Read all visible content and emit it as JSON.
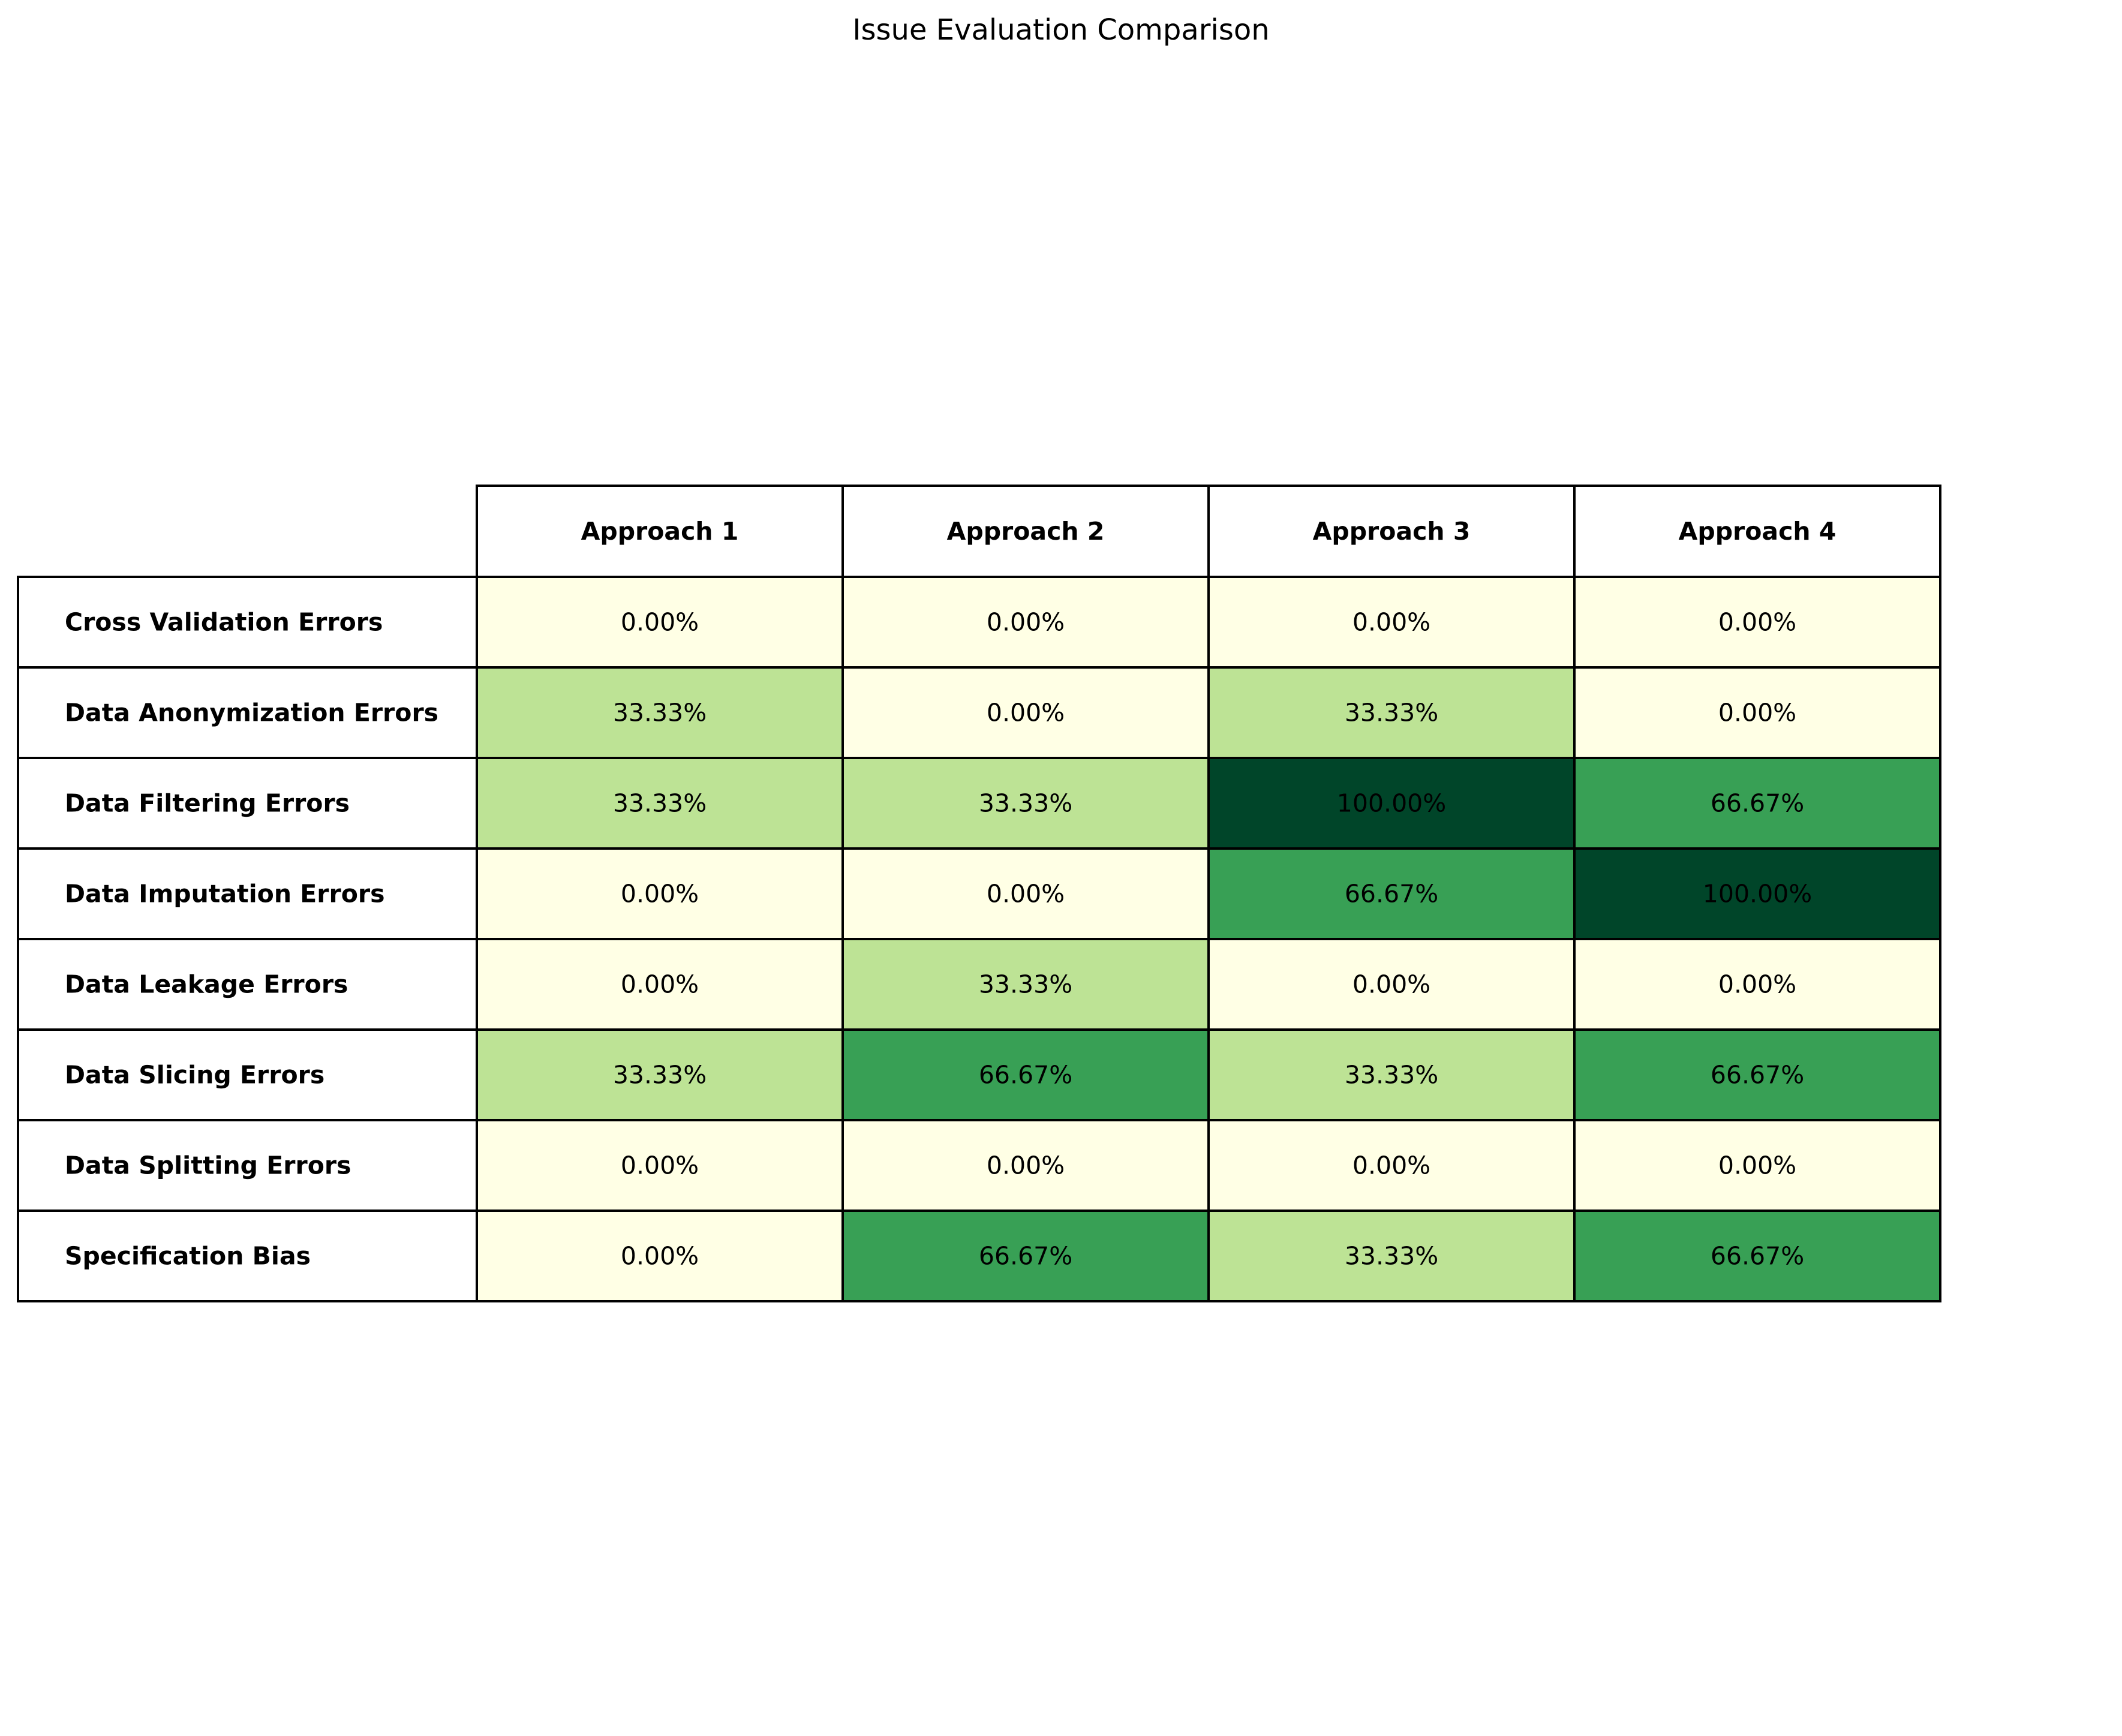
{
  "chart_data": {
    "type": "table",
    "title": "Issue Evaluation Comparison",
    "columns": [
      "Approach 1",
      "Approach 2",
      "Approach 3",
      "Approach 4"
    ],
    "rows": [
      "Cross Validation Errors",
      "Data Anonymization Errors",
      "Data Filtering Errors",
      "Data Imputation Errors",
      "Data Leakage Errors",
      "Data Slicing Errors",
      "Data Splitting Errors",
      "Specification Bias"
    ],
    "values": [
      [
        0.0,
        0.0,
        0.0,
        0.0
      ],
      [
        33.33,
        0.0,
        33.33,
        0.0
      ],
      [
        33.33,
        33.33,
        100.0,
        66.67
      ],
      [
        0.0,
        0.0,
        66.67,
        100.0
      ],
      [
        0.0,
        33.33,
        0.0,
        0.0
      ],
      [
        33.33,
        66.67,
        33.33,
        66.67
      ],
      [
        0.0,
        0.0,
        0.0,
        0.0
      ],
      [
        0.0,
        66.67,
        33.33,
        66.67
      ]
    ],
    "value_labels": [
      [
        "0.00%",
        "0.00%",
        "0.00%",
        "0.00%"
      ],
      [
        "33.33%",
        "0.00%",
        "33.33%",
        "0.00%"
      ],
      [
        "33.33%",
        "33.33%",
        "100.00%",
        "66.67%"
      ],
      [
        "0.00%",
        "0.00%",
        "66.67%",
        "100.00%"
      ],
      [
        "0.00%",
        "33.33%",
        "0.00%",
        "0.00%"
      ],
      [
        "33.33%",
        "66.67%",
        "33.33%",
        "66.67%"
      ],
      [
        "0.00%",
        "0.00%",
        "0.00%",
        "0.00%"
      ],
      [
        "0.00%",
        "66.67%",
        "33.33%",
        "66.67%"
      ]
    ],
    "color_scale": {
      "0.00": "#ffffe5",
      "33.33": "#bde395",
      "66.67": "#38a055",
      "100.00": "#004529"
    },
    "header_background": "#ffffff",
    "border_color": "#000000"
  }
}
